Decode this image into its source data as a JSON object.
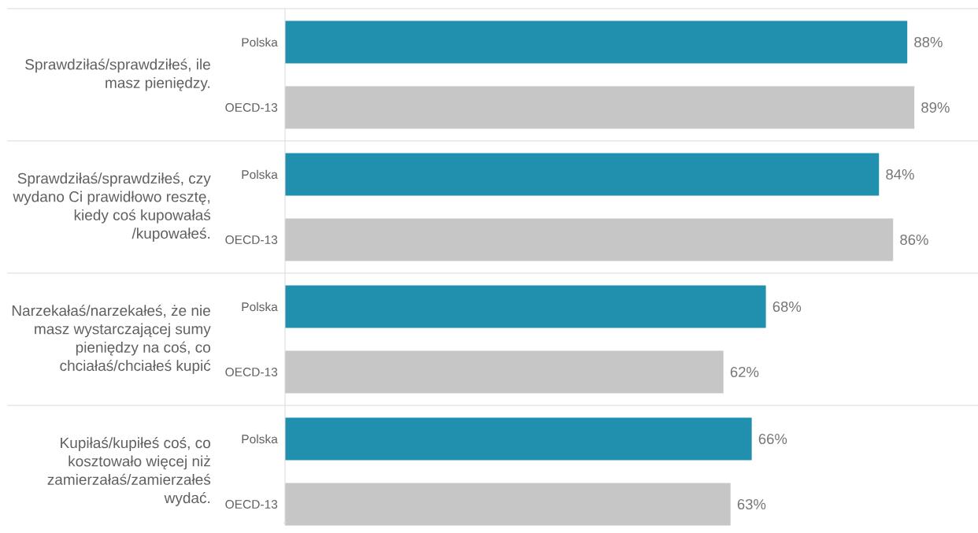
{
  "chart_data": {
    "type": "bar",
    "orientation": "horizontal",
    "categories": [
      "Sprawdziłaś/sprawdziłeś, ile masz pieniędzy.",
      "Sprawdziłaś/sprawdziłeś, czy wydano Ci prawidłowo resztę, kiedy coś kupowałaś /kupowałeś.",
      "Narzekałaś/narzekałeś, że nie masz wystarczającej sumy pieniędzy na coś, co chciałaś/chciałeś kupić",
      "Kupiłaś/kupiłeś coś, co kosztowało więcej niż zamierzałaś/zamierzałeś wydać."
    ],
    "series": [
      {
        "name": "Polska",
        "color": "#2190af",
        "values": [
          88,
          84,
          68,
          66
        ],
        "value_labels": [
          "88%",
          "84%",
          "68%",
          "66%"
        ]
      },
      {
        "name": "OECD-13",
        "color": "#c6c6c6",
        "values": [
          89,
          86,
          62,
          63
        ],
        "value_labels": [
          "89%",
          "86%",
          "62%",
          "63%"
        ]
      }
    ],
    "xlim": [
      0,
      98
    ],
    "tick_labels": "y",
    "grid": "y"
  }
}
